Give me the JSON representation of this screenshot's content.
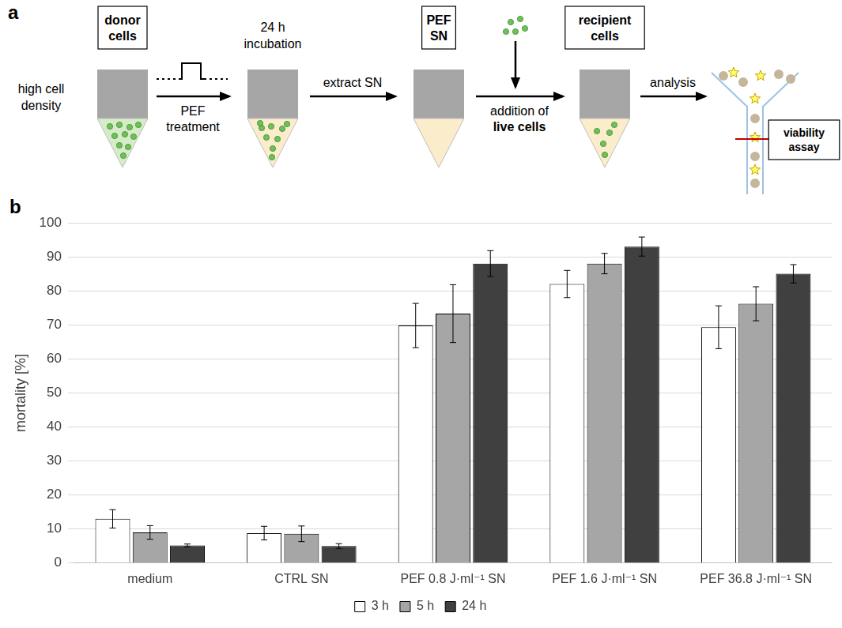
{
  "panel_labels": [
    "a",
    "b"
  ],
  "diagram": {
    "boxes": {
      "donor": "donor cells",
      "pef_sn": "PEF SN",
      "recipient": "recipient cells",
      "assay": "viability assay"
    },
    "notes": {
      "density": "high cell density",
      "incubation": "24 h incubation"
    },
    "arrows": [
      {
        "text": "PEF treatment"
      },
      {
        "text": "extract SN"
      },
      {
        "text": "addition of",
        "bold": "live cells"
      },
      {
        "text": "analysis"
      }
    ]
  },
  "chart_data": {
    "type": "bar",
    "y_label": "mortality [%]",
    "categories": [
      "medium",
      "CTRL SN",
      "PEF 0.8 J·ml⁻¹ SN",
      "PEF 1.6 J·ml⁻¹ SN",
      "PEF 36.8 J·ml⁻¹ SN"
    ],
    "series": [
      {
        "name": "3 h",
        "color": "#ffffff",
        "values": [
          13,
          8.8,
          69.8,
          82,
          69.3
        ],
        "errors": [
          2.7,
          2,
          6.5,
          4,
          6.3
        ]
      },
      {
        "name": "5 h",
        "color": "#a6a6a6",
        "values": [
          9,
          8.6,
          73.3,
          88,
          76.2
        ],
        "errors": [
          2,
          2.3,
          8.5,
          3,
          5
        ]
      },
      {
        "name": "24 h",
        "color": "#404040",
        "values": [
          5.2,
          5,
          88,
          93,
          85
        ],
        "errors": [
          0.4,
          0.7,
          3.8,
          2.8,
          2.7
        ]
      }
    ],
    "ylim": [
      0,
      100
    ],
    "yticks": [
      0,
      10,
      20,
      30,
      40,
      50,
      60,
      70,
      80,
      90,
      100
    ],
    "grid": true,
    "legend": "bottom"
  }
}
